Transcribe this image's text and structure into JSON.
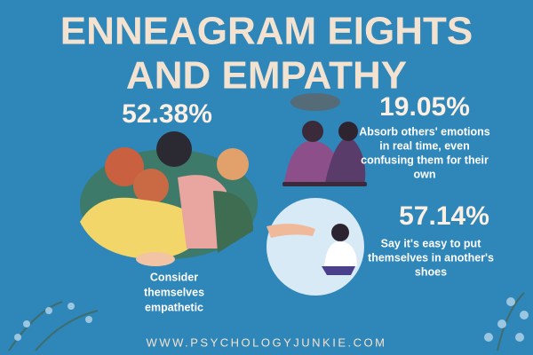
{
  "header": {
    "title": [
      "ENNEAGRAM EIGHTS",
      "AND EMPATHY"
    ]
  },
  "stats": [
    {
      "value": "52.38%",
      "description": [
        "Consider",
        "themselves",
        "empathetic"
      ]
    },
    {
      "value": "19.05%",
      "description": [
        "Absorb others' emotions",
        "in real time, even",
        "confusing them for their",
        "own"
      ]
    },
    {
      "value": "57.14%",
      "description": [
        "Say it's easy to put",
        "themselves in another's",
        "shoes"
      ]
    }
  ],
  "footer": {
    "url": "WWW.PSYCHOLOGYJUNKIE.COM"
  }
}
